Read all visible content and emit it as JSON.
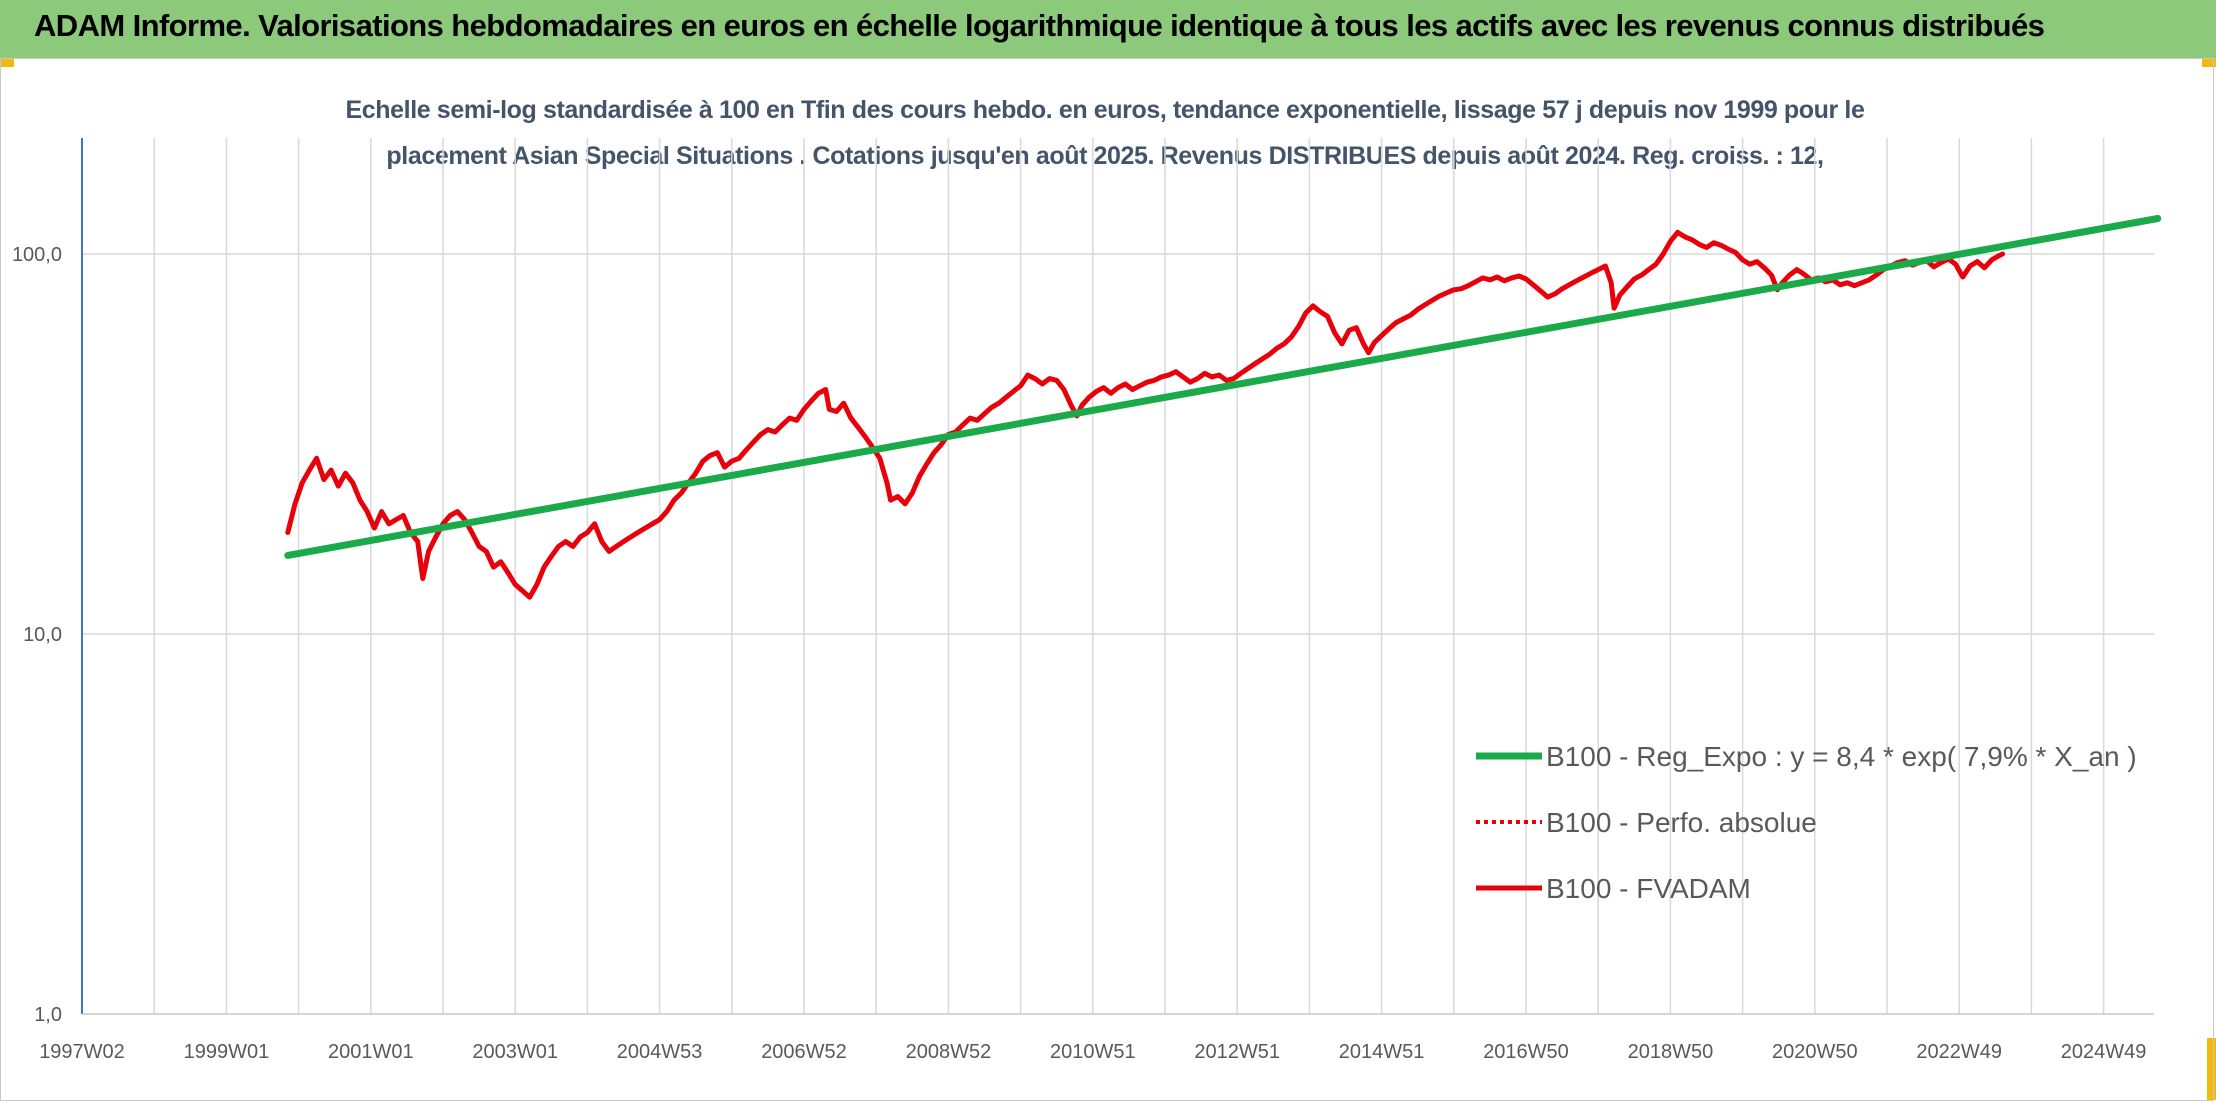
{
  "header": {
    "title": "ADAM Informe. Valorisations hebdomadaires en euros en échelle logarithmique identique à tous les actifs avec les revenus connus distribués"
  },
  "colors": {
    "header_bg": "#8cc97a",
    "corner_accent": "#f2b90f",
    "regression": "#1aaa4a",
    "series": "#e8000a",
    "grid": "#d9d9d9"
  },
  "chart_data": {
    "type": "line",
    "title_line1": "Echelle semi-log standardisée à 100 en Tfin des cours hebdo. en euros, tendance exponentielle, lissage 57 j depuis nov 1999 pour le",
    "title_line2": "placement Asian Special Situations . Cotations jusqu'en août 2025. Revenus DISTRIBUES depuis août 2024. Reg. croiss. : 12,",
    "y_scale": "log",
    "ylim": [
      1,
      200
    ],
    "y_ticks": [
      "1,0",
      "10,0",
      "100,0"
    ],
    "y_tick_values": [
      1,
      10,
      100
    ],
    "x_range": [
      1997.0,
      2025.75
    ],
    "x_ticks": [
      {
        "label": "1997W02",
        "x": 1997.0
      },
      {
        "label": "1999W01",
        "x": 1999.0
      },
      {
        "label": "2001W01",
        "x": 2001.0
      },
      {
        "label": "2003W01",
        "x": 2003.0
      },
      {
        "label": "2004W53",
        "x": 2005.0
      },
      {
        "label": "2006W52",
        "x": 2007.0
      },
      {
        "label": "2008W52",
        "x": 2009.0
      },
      {
        "label": "2010W51",
        "x": 2011.0
      },
      {
        "label": "2012W51",
        "x": 2013.0
      },
      {
        "label": "2014W51",
        "x": 2015.0
      },
      {
        "label": "2016W50",
        "x": 2017.0
      },
      {
        "label": "2018W50",
        "x": 2019.0
      },
      {
        "label": "2020W50",
        "x": 2021.0
      },
      {
        "label": "2022W49",
        "x": 2023.0
      },
      {
        "label": "2024W49",
        "x": 2025.0
      }
    ],
    "grid": true,
    "legend_position": "bottom-right",
    "series": [
      {
        "name": "B100 - Reg_Expo : y = 8,4 * exp( 7,9% *  X_an )",
        "style": "solid-thick",
        "color": "#1aaa4a",
        "points": [
          [
            1999.85,
            16.1
          ],
          [
            2025.75,
            124.0
          ]
        ]
      },
      {
        "name": "B100 - Perfo. absolue",
        "style": "dotted",
        "color": "#e8000a",
        "points": []
      },
      {
        "name": "B100 - FVADAM",
        "style": "solid",
        "color": "#e8000a",
        "points": [
          [
            1999.85,
            18.5
          ],
          [
            1999.95,
            22.0
          ],
          [
            2000.05,
            25.0
          ],
          [
            2000.15,
            27.0
          ],
          [
            2000.25,
            29.0
          ],
          [
            2000.35,
            25.5
          ],
          [
            2000.45,
            27.0
          ],
          [
            2000.55,
            24.5
          ],
          [
            2000.65,
            26.5
          ],
          [
            2000.75,
            25.0
          ],
          [
            2000.85,
            22.5
          ],
          [
            2000.95,
            21.0
          ],
          [
            2001.05,
            19.0
          ],
          [
            2001.15,
            21.0
          ],
          [
            2001.25,
            19.5
          ],
          [
            2001.35,
            20.0
          ],
          [
            2001.45,
            20.5
          ],
          [
            2001.55,
            18.5
          ],
          [
            2001.65,
            17.5
          ],
          [
            2001.72,
            14.0
          ],
          [
            2001.8,
            16.5
          ],
          [
            2001.9,
            18.0
          ],
          [
            2002.0,
            19.5
          ],
          [
            2002.1,
            20.5
          ],
          [
            2002.2,
            21.0
          ],
          [
            2002.3,
            20.0
          ],
          [
            2002.4,
            18.5
          ],
          [
            2002.5,
            17.0
          ],
          [
            2002.6,
            16.5
          ],
          [
            2002.7,
            15.0
          ],
          [
            2002.8,
            15.5
          ],
          [
            2002.9,
            14.5
          ],
          [
            2003.0,
            13.5
          ],
          [
            2003.1,
            13.0
          ],
          [
            2003.2,
            12.5
          ],
          [
            2003.3,
            13.5
          ],
          [
            2003.4,
            15.0
          ],
          [
            2003.5,
            16.0
          ],
          [
            2003.6,
            17.0
          ],
          [
            2003.7,
            17.5
          ],
          [
            2003.8,
            17.0
          ],
          [
            2003.9,
            18.0
          ],
          [
            2004.0,
            18.5
          ],
          [
            2004.1,
            19.5
          ],
          [
            2004.2,
            17.5
          ],
          [
            2004.3,
            16.5
          ],
          [
            2004.4,
            17.0
          ],
          [
            2004.5,
            17.5
          ],
          [
            2004.6,
            18.0
          ],
          [
            2004.7,
            18.5
          ],
          [
            2004.8,
            19.0
          ],
          [
            2004.9,
            19.5
          ],
          [
            2005.0,
            20.0
          ],
          [
            2005.1,
            21.0
          ],
          [
            2005.2,
            22.5
          ],
          [
            2005.3,
            23.5
          ],
          [
            2005.4,
            25.0
          ],
          [
            2005.5,
            26.5
          ],
          [
            2005.6,
            28.5
          ],
          [
            2005.7,
            29.5
          ],
          [
            2005.8,
            30.0
          ],
          [
            2005.9,
            27.5
          ],
          [
            2006.0,
            28.5
          ],
          [
            2006.1,
            29.0
          ],
          [
            2006.2,
            30.5
          ],
          [
            2006.3,
            32.0
          ],
          [
            2006.4,
            33.5
          ],
          [
            2006.5,
            34.5
          ],
          [
            2006.6,
            34.0
          ],
          [
            2006.7,
            35.5
          ],
          [
            2006.8,
            37.0
          ],
          [
            2006.9,
            36.5
          ],
          [
            2007.0,
            39.0
          ],
          [
            2007.1,
            41.0
          ],
          [
            2007.2,
            43.0
          ],
          [
            2007.3,
            44.0
          ],
          [
            2007.35,
            39.0
          ],
          [
            2007.45,
            38.5
          ],
          [
            2007.55,
            40.5
          ],
          [
            2007.65,
            37.0
          ],
          [
            2007.75,
            35.0
          ],
          [
            2007.85,
            33.0
          ],
          [
            2007.95,
            31.0
          ],
          [
            2008.05,
            29.0
          ],
          [
            2008.15,
            25.0
          ],
          [
            2008.2,
            22.5
          ],
          [
            2008.3,
            23.0
          ],
          [
            2008.4,
            22.0
          ],
          [
            2008.5,
            23.5
          ],
          [
            2008.6,
            26.0
          ],
          [
            2008.7,
            28.0
          ],
          [
            2008.8,
            30.0
          ],
          [
            2008.9,
            31.5
          ],
          [
            2009.0,
            33.5
          ],
          [
            2009.1,
            34.0
          ],
          [
            2009.2,
            35.5
          ],
          [
            2009.3,
            37.0
          ],
          [
            2009.4,
            36.5
          ],
          [
            2009.5,
            38.0
          ],
          [
            2009.6,
            39.5
          ],
          [
            2009.7,
            40.5
          ],
          [
            2009.8,
            42.0
          ],
          [
            2009.9,
            43.5
          ],
          [
            2010.0,
            45.0
          ],
          [
            2010.1,
            48.0
          ],
          [
            2010.2,
            47.0
          ],
          [
            2010.3,
            45.5
          ],
          [
            2010.4,
            47.0
          ],
          [
            2010.5,
            46.5
          ],
          [
            2010.6,
            44.0
          ],
          [
            2010.7,
            40.0
          ],
          [
            2010.78,
            37.5
          ],
          [
            2010.85,
            40.0
          ],
          [
            2010.95,
            42.0
          ],
          [
            2011.05,
            43.5
          ],
          [
            2011.15,
            44.5
          ],
          [
            2011.25,
            43.0
          ],
          [
            2011.35,
            44.5
          ],
          [
            2011.45,
            45.5
          ],
          [
            2011.55,
            44.0
          ],
          [
            2011.65,
            45.0
          ],
          [
            2011.75,
            46.0
          ],
          [
            2011.85,
            46.5
          ],
          [
            2011.95,
            47.5
          ],
          [
            2012.05,
            48.0
          ],
          [
            2012.15,
            49.0
          ],
          [
            2012.25,
            47.5
          ],
          [
            2012.35,
            46.0
          ],
          [
            2012.45,
            47.0
          ],
          [
            2012.55,
            48.5
          ],
          [
            2012.65,
            47.5
          ],
          [
            2012.75,
            48.0
          ],
          [
            2012.85,
            46.5
          ],
          [
            2012.95,
            47.0
          ],
          [
            2013.05,
            48.5
          ],
          [
            2013.15,
            50.0
          ],
          [
            2013.25,
            51.5
          ],
          [
            2013.35,
            53.0
          ],
          [
            2013.45,
            54.5
          ],
          [
            2013.55,
            56.5
          ],
          [
            2013.65,
            58.0
          ],
          [
            2013.75,
            60.5
          ],
          [
            2013.85,
            64.5
          ],
          [
            2013.95,
            70.0
          ],
          [
            2014.05,
            73.0
          ],
          [
            2014.15,
            70.5
          ],
          [
            2014.25,
            68.5
          ],
          [
            2014.35,
            62.0
          ],
          [
            2014.45,
            58.0
          ],
          [
            2014.55,
            63.0
          ],
          [
            2014.65,
            64.0
          ],
          [
            2014.75,
            58.0
          ],
          [
            2014.82,
            55.0
          ],
          [
            2014.9,
            58.5
          ],
          [
            2015.0,
            61.0
          ],
          [
            2015.1,
            63.5
          ],
          [
            2015.2,
            66.0
          ],
          [
            2015.3,
            67.5
          ],
          [
            2015.4,
            69.0
          ],
          [
            2015.5,
            71.5
          ],
          [
            2015.6,
            73.5
          ],
          [
            2015.7,
            75.5
          ],
          [
            2015.8,
            77.5
          ],
          [
            2015.9,
            79.0
          ],
          [
            2016.0,
            80.5
          ],
          [
            2016.1,
            81.0
          ],
          [
            2016.2,
            82.5
          ],
          [
            2016.3,
            84.5
          ],
          [
            2016.4,
            86.5
          ],
          [
            2016.5,
            85.5
          ],
          [
            2016.6,
            87.0
          ],
          [
            2016.7,
            85.0
          ],
          [
            2016.8,
            86.5
          ],
          [
            2016.9,
            87.5
          ],
          [
            2017.0,
            86.0
          ],
          [
            2017.1,
            83.0
          ],
          [
            2017.2,
            80.0
          ],
          [
            2017.3,
            77.0
          ],
          [
            2017.4,
            78.5
          ],
          [
            2017.5,
            81.0
          ],
          [
            2017.6,
            83.0
          ],
          [
            2017.7,
            85.0
          ],
          [
            2017.8,
            87.0
          ],
          [
            2017.9,
            89.0
          ],
          [
            2018.0,
            91.0
          ],
          [
            2018.1,
            93.0
          ],
          [
            2018.18,
            84.0
          ],
          [
            2018.22,
            72.0
          ],
          [
            2018.3,
            78.0
          ],
          [
            2018.4,
            82.0
          ],
          [
            2018.5,
            86.0
          ],
          [
            2018.6,
            88.0
          ],
          [
            2018.7,
            91.0
          ],
          [
            2018.8,
            94.0
          ],
          [
            2018.9,
            100.0
          ],
          [
            2019.0,
            108.0
          ],
          [
            2019.1,
            114.0
          ],
          [
            2019.2,
            111.0
          ],
          [
            2019.3,
            109.0
          ],
          [
            2019.4,
            106.0
          ],
          [
            2019.5,
            104.0
          ],
          [
            2019.6,
            107.0
          ],
          [
            2019.7,
            105.5
          ],
          [
            2019.8,
            103.0
          ],
          [
            2019.9,
            101.0
          ],
          [
            2020.0,
            96.5
          ],
          [
            2020.1,
            94.0
          ],
          [
            2020.2,
            95.5
          ],
          [
            2020.3,
            92.0
          ],
          [
            2020.4,
            88.0
          ],
          [
            2020.48,
            80.5
          ],
          [
            2020.55,
            84.0
          ],
          [
            2020.65,
            88.0
          ],
          [
            2020.75,
            91.0
          ],
          [
            2020.85,
            88.5
          ],
          [
            2020.95,
            85.5
          ],
          [
            2021.05,
            86.5
          ],
          [
            2021.15,
            84.5
          ],
          [
            2021.25,
            85.5
          ],
          [
            2021.35,
            83.0
          ],
          [
            2021.45,
            84.0
          ],
          [
            2021.55,
            82.5
          ],
          [
            2021.65,
            84.0
          ],
          [
            2021.75,
            85.5
          ],
          [
            2021.85,
            88.0
          ],
          [
            2021.95,
            91.0
          ],
          [
            2022.05,
            93.0
          ],
          [
            2022.15,
            95.0
          ],
          [
            2022.25,
            96.0
          ],
          [
            2022.35,
            93.5
          ],
          [
            2022.45,
            95.0
          ],
          [
            2022.55,
            96.0
          ],
          [
            2022.65,
            92.5
          ],
          [
            2022.75,
            95.0
          ],
          [
            2022.85,
            97.0
          ],
          [
            2022.95,
            94.0
          ],
          [
            2023.05,
            87.0
          ],
          [
            2023.15,
            93.0
          ],
          [
            2023.25,
            95.5
          ],
          [
            2023.35,
            92.0
          ],
          [
            2023.45,
            96.5
          ],
          [
            2023.55,
            99.0
          ],
          [
            2023.6,
            100.0
          ]
        ]
      }
    ]
  }
}
